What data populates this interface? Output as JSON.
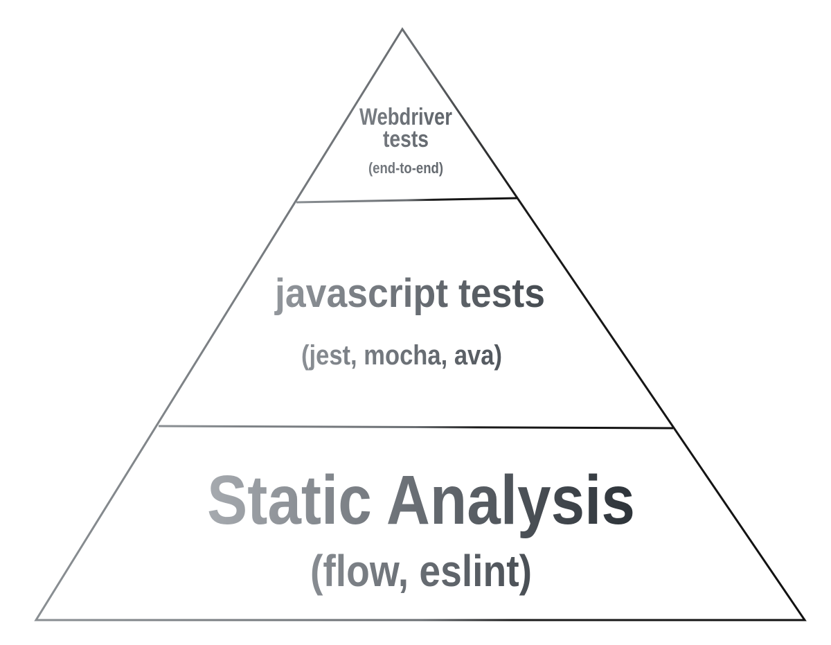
{
  "tiers": [
    {
      "title": "Webdriver tests",
      "title_lines": [
        "Webdriver",
        "tests"
      ],
      "subtitle": "(end-to-end)"
    },
    {
      "title": "javascript tests",
      "title_lines": [
        "javascript tests"
      ],
      "subtitle": "(jest, mocha, ava)"
    },
    {
      "title": "Static Analysis",
      "title_lines": [
        "Static Analysis"
      ],
      "subtitle": "(flow, eslint)"
    }
  ],
  "colors": {
    "text_light": "#a3a7ad",
    "text_dark": "#2c3238",
    "outline_light": "#8a8f93",
    "outline_dark": "#111111",
    "background": "#ffffff"
  }
}
